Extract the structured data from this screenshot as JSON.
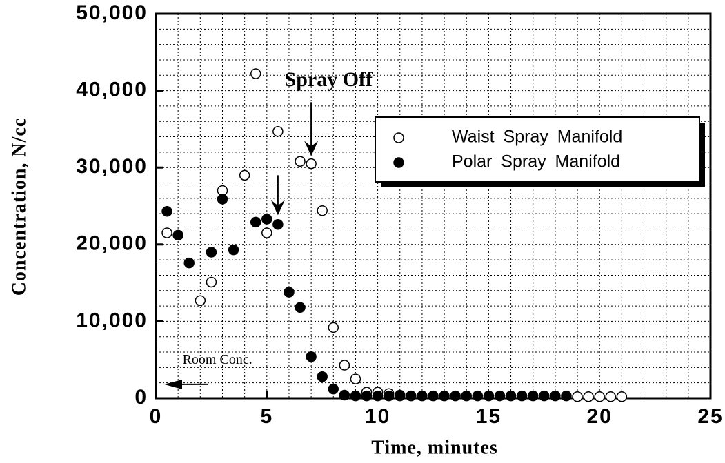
{
  "chart_data": {
    "type": "scatter",
    "xlabel": "Time, minutes",
    "ylabel": "Concentration, N/cc",
    "xlim": [
      0,
      25
    ],
    "ylim": [
      0,
      50000
    ],
    "xticks": [
      0,
      5,
      10,
      15,
      20,
      25
    ],
    "yticks": [
      0,
      {
        "value": 10000,
        "label": "10,000"
      },
      {
        "value": 20000,
        "label": "20,000"
      },
      {
        "value": 30000,
        "label": "30,000"
      },
      {
        "value": 40000,
        "label": "40,000"
      },
      {
        "value": 50000,
        "label": "50,000"
      }
    ],
    "grid": true,
    "annotations": [
      "Spray Off",
      "Room Conc."
    ],
    "series": [
      {
        "name": "Waist Spray Manifold",
        "color": "#000",
        "marker": "open",
        "x": [
          0.5,
          2,
          2.5,
          3,
          4,
          4.5,
          5,
          5.5,
          6.5,
          7,
          7.5,
          8,
          8.5,
          9,
          9.5,
          10,
          10.5,
          11,
          19,
          19.5,
          20,
          20.5,
          21
        ],
        "values": [
          21500,
          12700,
          15100,
          27000,
          29000,
          42200,
          21500,
          34700,
          30800,
          30500,
          24400,
          9200,
          4300,
          2500,
          800,
          800,
          600,
          400,
          200,
          200,
          200,
          200,
          200
        ]
      },
      {
        "name": "Polar Spray Manifold",
        "color": "#000",
        "marker": "filled",
        "x": [
          0.5,
          1,
          1.5,
          2.5,
          3,
          3.5,
          4.5,
          5,
          5.5,
          6,
          6.5,
          7,
          7.5,
          8,
          8.5,
          9,
          9.5,
          10,
          10.5,
          11,
          11.5,
          12,
          12.5,
          13,
          13.5,
          14,
          14.5,
          15,
          15.5,
          16,
          16.5,
          17,
          17.5,
          18,
          18.5
        ],
        "values": [
          24300,
          21200,
          17600,
          19000,
          25900,
          19300,
          22900,
          23300,
          22600,
          13800,
          11800,
          5400,
          2800,
          1200,
          400,
          300,
          300,
          300,
          300,
          300,
          300,
          300,
          300,
          300,
          300,
          300,
          300,
          300,
          300,
          300,
          300,
          300,
          300,
          300,
          300
        ]
      }
    ]
  }
}
